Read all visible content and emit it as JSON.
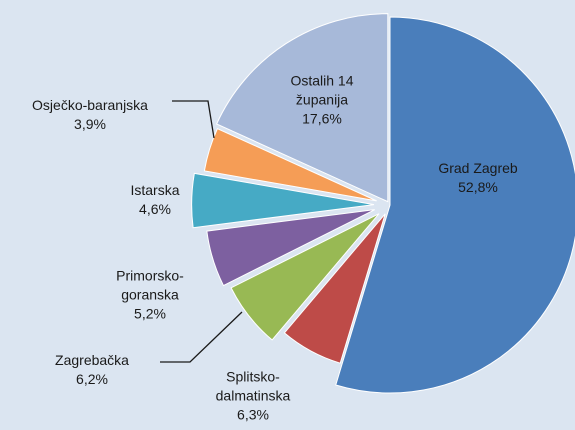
{
  "chart_data": {
    "type": "pie",
    "categories": [
      "Grad Zagreb",
      "Splitsko-dalmatinska",
      "Zagrebačka",
      "Primorsko-goranska",
      "Istarska",
      "Osječko-baranjska",
      "Ostalih 14 županija"
    ],
    "values": [
      52.8,
      6.3,
      6.2,
      5.2,
      4.6,
      3.9,
      17.6
    ],
    "value_labels": [
      "52,8%",
      "6,3%",
      "6,2%",
      "5,2%",
      "4,6%",
      "3,9%",
      "17,6%"
    ],
    "colors": [
      "#4a7ebb",
      "#be4b48",
      "#98b954",
      "#7d60a0",
      "#46aac5",
      "#f59d56",
      "#a7b9d9"
    ]
  }
}
